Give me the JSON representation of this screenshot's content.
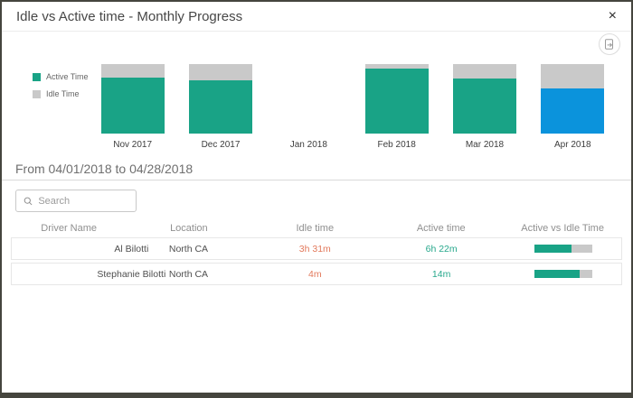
{
  "dialog": {
    "title": "Idle vs Active time - Monthly Progress",
    "close_glyph": "×"
  },
  "colors": {
    "active": "#19a386",
    "idle": "#c9c9c9",
    "selected_month": "#0b93dc",
    "idle_text": "#e2795b",
    "active_text": "#27a88c"
  },
  "legend": {
    "items": [
      {
        "label": "Active Time",
        "color": "#19a386"
      },
      {
        "label": "Idle Time",
        "color": "#c9c9c9"
      }
    ]
  },
  "chart_data": {
    "type": "bar",
    "stacked": true,
    "categories": [
      "Nov 2017",
      "Dec 2017",
      "Jan 2018",
      "Feb 2018",
      "Mar 2018",
      "Apr 2018"
    ],
    "series": [
      {
        "name": "Active Time",
        "values": [
          80,
          76,
          0,
          94,
          79,
          65
        ]
      },
      {
        "name": "Idle Time",
        "values": [
          20,
          24,
          0,
          6,
          21,
          35
        ]
      }
    ],
    "unit": "percent of column height (estimated; chart has no visible axis)",
    "highlight": {
      "category": "Apr 2018",
      "series": "Active Time",
      "color": "#0b93dc"
    },
    "legend_position": "left",
    "axes_visible": false
  },
  "period": {
    "label": "From 04/01/2018 to 04/28/2018"
  },
  "search": {
    "placeholder": "Search"
  },
  "table": {
    "columns": [
      "Driver Name",
      "Location",
      "Idle time",
      "Active time",
      "Active vs Idle Time"
    ],
    "rows": [
      {
        "name": "Al Bilotti",
        "location": "North CA",
        "idle_time": "3h 31m",
        "active_time": "6h 22m",
        "active_pct": 64
      },
      {
        "name": "Stephanie Bilotti",
        "location": "North CA",
        "idle_time": "4m",
        "active_time": "14m",
        "active_pct": 78
      }
    ]
  }
}
